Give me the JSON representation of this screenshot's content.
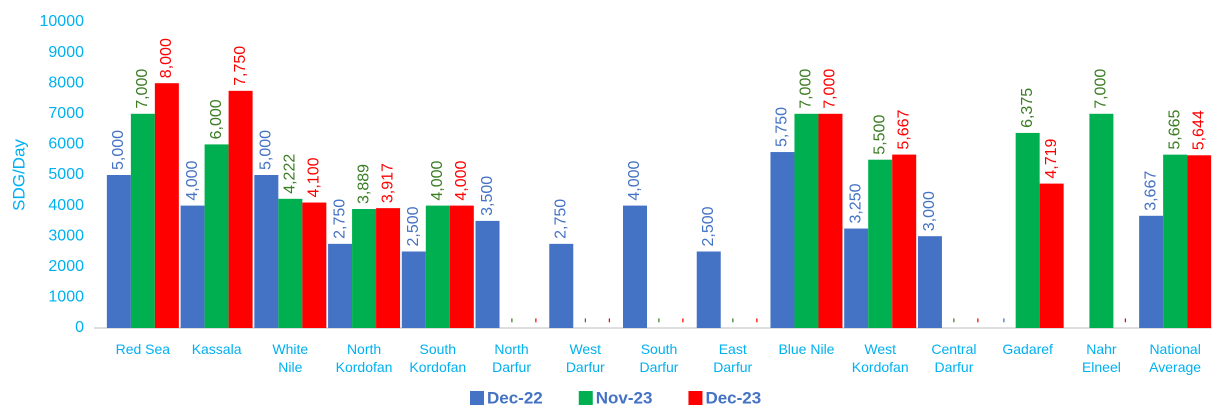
{
  "chart_data": {
    "type": "bar",
    "y_label": "SDG/Day",
    "categories": [
      [
        "Red Sea"
      ],
      [
        "Kassala"
      ],
      [
        "White",
        "Nile"
      ],
      [
        "North",
        "Kordofan"
      ],
      [
        "South",
        "Kordofan"
      ],
      [
        "North",
        "Darfur"
      ],
      [
        "West",
        "Darfur"
      ],
      [
        "South",
        "Darfur"
      ],
      [
        "East",
        "Darfur"
      ],
      [
        "Blue Nile"
      ],
      [
        "West",
        "Kordofan"
      ],
      [
        "Central",
        "Darfur"
      ],
      [
        "Gadaref"
      ],
      [
        "Nahr",
        "Elneel"
      ],
      [
        "National",
        "Average"
      ]
    ],
    "series": [
      {
        "name": "Dec-22",
        "color": "#4472c4",
        "label_color": "#4472c4",
        "values": [
          5000,
          4000,
          5000,
          2750,
          2500,
          3500,
          2750,
          4000,
          2500,
          5750,
          3250,
          3000,
          0,
          null,
          3667
        ],
        "value_labels": [
          "5,000",
          "4,000",
          "5,000",
          "2,750",
          "2,500",
          "3,500",
          "2,750",
          "4,000",
          "2,500",
          "5,750",
          "3,250",
          "3,000",
          "-",
          null,
          "3,667"
        ]
      },
      {
        "name": "Nov-23",
        "color": "#00b050",
        "label_color": "#3b7d23",
        "values": [
          7000,
          6000,
          4222,
          3889,
          4000,
          0,
          0,
          0,
          0,
          7000,
          5500,
          0,
          6375,
          7000,
          5665
        ],
        "value_labels": [
          "7,000",
          "6,000",
          "4,222",
          "3,889",
          "4,000",
          "-",
          "-",
          "-",
          "-",
          "7,000",
          "5,500",
          "-",
          "6,375",
          "7,000",
          "5,665"
        ]
      },
      {
        "name": "Dec-23",
        "color": "#ff0000",
        "label_color": "#ff0000",
        "values": [
          8000,
          7750,
          4100,
          3917,
          4000,
          0,
          0,
          0,
          0,
          7000,
          5667,
          0,
          4719,
          0,
          5644
        ],
        "value_labels": [
          "8,000",
          "7,750",
          "4,100",
          "3,917",
          "4,000",
          "-",
          "-",
          "-",
          "-",
          "7,000",
          "5,667",
          "-",
          "4,719",
          "-",
          "5,644"
        ]
      }
    ],
    "ylim": [
      0,
      10000
    ],
    "yticks": [
      0,
      1000,
      2000,
      3000,
      4000,
      5000,
      6000,
      7000,
      8000,
      9000,
      10000
    ],
    "grid": false,
    "legend": "bottom"
  }
}
